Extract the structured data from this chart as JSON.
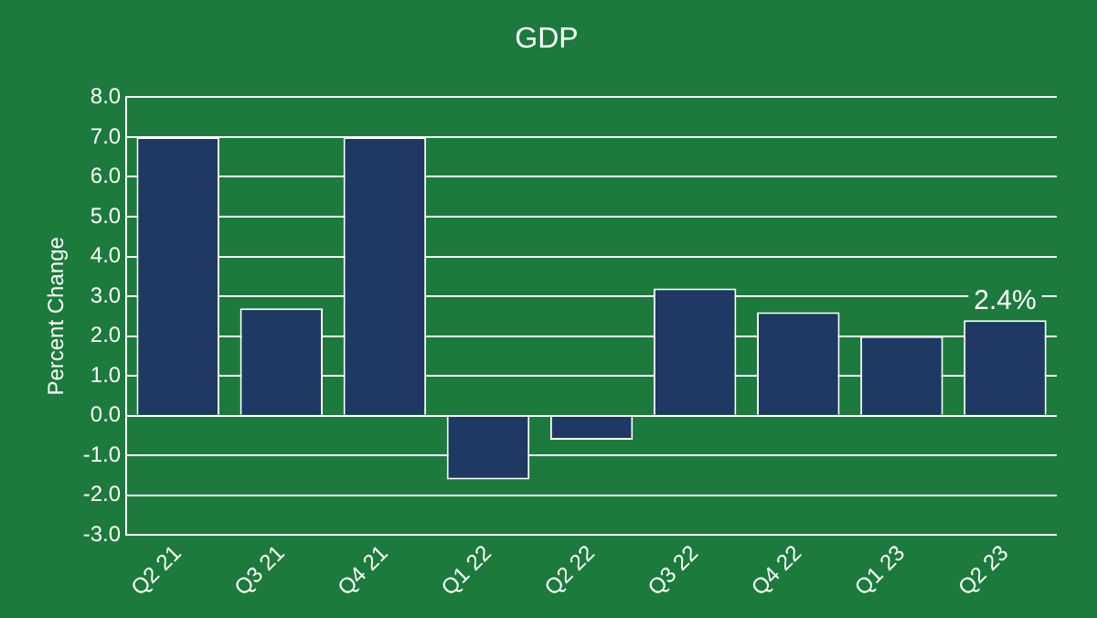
{
  "chart_data": {
    "type": "bar",
    "title": "GDP",
    "ylabel": "Percent Change",
    "categories": [
      "Q2 21",
      "Q3 21",
      "Q4 21",
      "Q1 22",
      "Q2 22",
      "Q3 22",
      "Q4 22",
      "Q1 23",
      "Q2 23"
    ],
    "values": [
      7.0,
      2.7,
      7.0,
      -1.6,
      -0.6,
      3.2,
      2.6,
      2.0,
      2.4
    ],
    "value_labels": [
      null,
      null,
      null,
      null,
      null,
      null,
      null,
      null,
      "2.4%"
    ],
    "color": "#1f3864",
    "ylim": [
      -3,
      8
    ],
    "yticks": [
      {
        "value": 8,
        "label": "8.0"
      },
      {
        "value": 7,
        "label": "7.0"
      },
      {
        "value": 6,
        "label": "6.0"
      },
      {
        "value": 5,
        "label": "5.0"
      },
      {
        "value": 4,
        "label": "4.0"
      },
      {
        "value": 3,
        "label": "3.0"
      },
      {
        "value": 2,
        "label": "2.0"
      },
      {
        "value": 1,
        "label": "1.0"
      },
      {
        "value": 0,
        "label": "0.0"
      },
      {
        "value": -1,
        "label": "-1.0"
      },
      {
        "value": -2,
        "label": "-2.0"
      },
      {
        "value": -3,
        "label": "-3.0"
      }
    ],
    "grid": "y",
    "legend": false
  }
}
